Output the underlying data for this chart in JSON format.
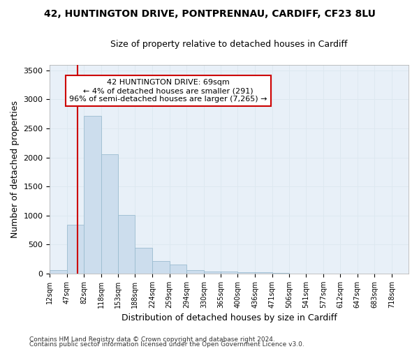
{
  "title_line1": "42, HUNTINGTON DRIVE, PONTPRENNAU, CARDIFF, CF23 8LU",
  "title_line2": "Size of property relative to detached houses in Cardiff",
  "xlabel": "Distribution of detached houses by size in Cardiff",
  "ylabel": "Number of detached properties",
  "footer_line1": "Contains HM Land Registry data © Crown copyright and database right 2024.",
  "footer_line2": "Contains public sector information licensed under the Open Government Licence v3.0.",
  "bin_labels": [
    "12sqm",
    "47sqm",
    "82sqm",
    "118sqm",
    "153sqm",
    "188sqm",
    "224sqm",
    "259sqm",
    "294sqm",
    "330sqm",
    "365sqm",
    "400sqm",
    "436sqm",
    "471sqm",
    "506sqm",
    "541sqm",
    "577sqm",
    "612sqm",
    "647sqm",
    "683sqm",
    "718sqm"
  ],
  "bar_values": [
    60,
    840,
    2720,
    2060,
    1010,
    450,
    210,
    150,
    65,
    40,
    35,
    28,
    18,
    12,
    0,
    0,
    0,
    0,
    0,
    0,
    0
  ],
  "bar_color": "#ccdded",
  "bar_edgecolor": "#9bbcd0",
  "grid_color": "#dde8f0",
  "plot_bg_color": "#e8f0f8",
  "figure_bg_color": "#ffffff",
  "property_line_x": 69,
  "property_line_color": "#cc0000",
  "annotation_text": "42 HUNTINGTON DRIVE: 69sqm\n← 4% of detached houses are smaller (291)\n96% of semi-detached houses are larger (7,265) →",
  "annotation_box_facecolor": "#ffffff",
  "annotation_box_edgecolor": "#cc0000",
  "ylim": [
    0,
    3600
  ],
  "yticks": [
    0,
    500,
    1000,
    1500,
    2000,
    2500,
    3000,
    3500
  ],
  "title1_fontsize": 10,
  "title2_fontsize": 9,
  "ylabel_fontsize": 9,
  "xlabel_fontsize": 9,
  "tick_fontsize": 8,
  "annot_fontsize": 8,
  "footer_fontsize": 6.5
}
